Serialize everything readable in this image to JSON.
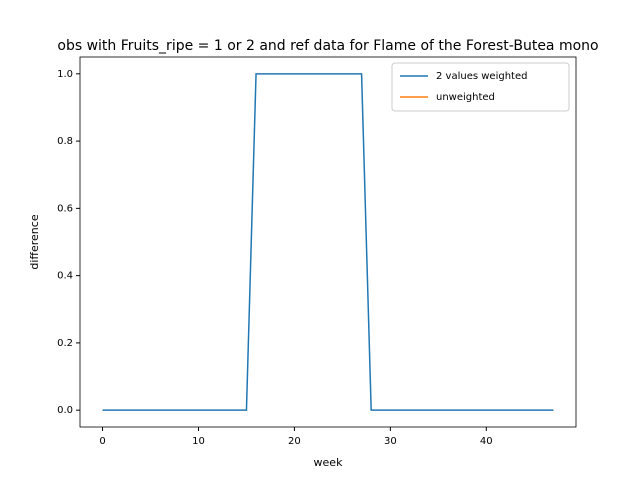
{
  "chart_data": {
    "type": "line",
    "title": "obs with Fruits_ripe = 1 or 2 and ref data for Flame of the Forest-Butea mono",
    "xlabel": "week",
    "ylabel": "difference",
    "x": [
      0,
      1,
      2,
      3,
      4,
      5,
      6,
      7,
      8,
      9,
      10,
      11,
      12,
      13,
      14,
      15,
      16,
      17,
      18,
      19,
      20,
      21,
      22,
      23,
      24,
      25,
      26,
      27,
      28,
      29,
      30,
      31,
      32,
      33,
      34,
      35,
      36,
      37,
      38,
      39,
      40,
      41,
      42,
      43,
      44,
      45,
      46,
      47
    ],
    "series": [
      {
        "name": "2 values weighted",
        "color": "#1f77b4",
        "values": [
          0,
          0,
          0,
          0,
          0,
          0,
          0,
          0,
          0,
          0,
          0,
          0,
          0,
          0,
          0,
          0,
          1,
          1,
          1,
          1,
          1,
          1,
          1,
          1,
          1,
          1,
          1,
          1,
          0,
          0,
          0,
          0,
          0,
          0,
          0,
          0,
          0,
          0,
          0,
          0,
          0,
          0,
          0,
          0,
          0,
          0,
          0,
          0
        ]
      },
      {
        "name": "unweighted",
        "color": "#ff7f0e",
        "values": [
          null,
          null,
          null,
          null,
          null,
          null,
          null,
          null,
          null,
          null,
          null,
          null,
          null,
          null,
          null,
          null,
          null,
          null,
          null,
          null,
          null,
          null,
          null,
          null,
          null,
          null,
          null,
          null,
          null,
          null,
          null,
          null,
          null,
          null,
          null,
          null,
          null,
          null,
          null,
          null,
          null,
          null,
          null,
          null,
          null,
          null,
          null,
          null
        ]
      }
    ],
    "xlim": [
      -2.35,
      49.35
    ],
    "xticks": [
      0,
      10,
      20,
      30,
      40
    ],
    "ylim": [
      -0.05,
      1.05
    ],
    "yticks": [
      {
        "value": 0,
        "label": "0.0"
      },
      0.2,
      0.4,
      0.6,
      0.8,
      {
        "value": 1,
        "label": "1.0"
      }
    ],
    "legend": "upper right"
  }
}
